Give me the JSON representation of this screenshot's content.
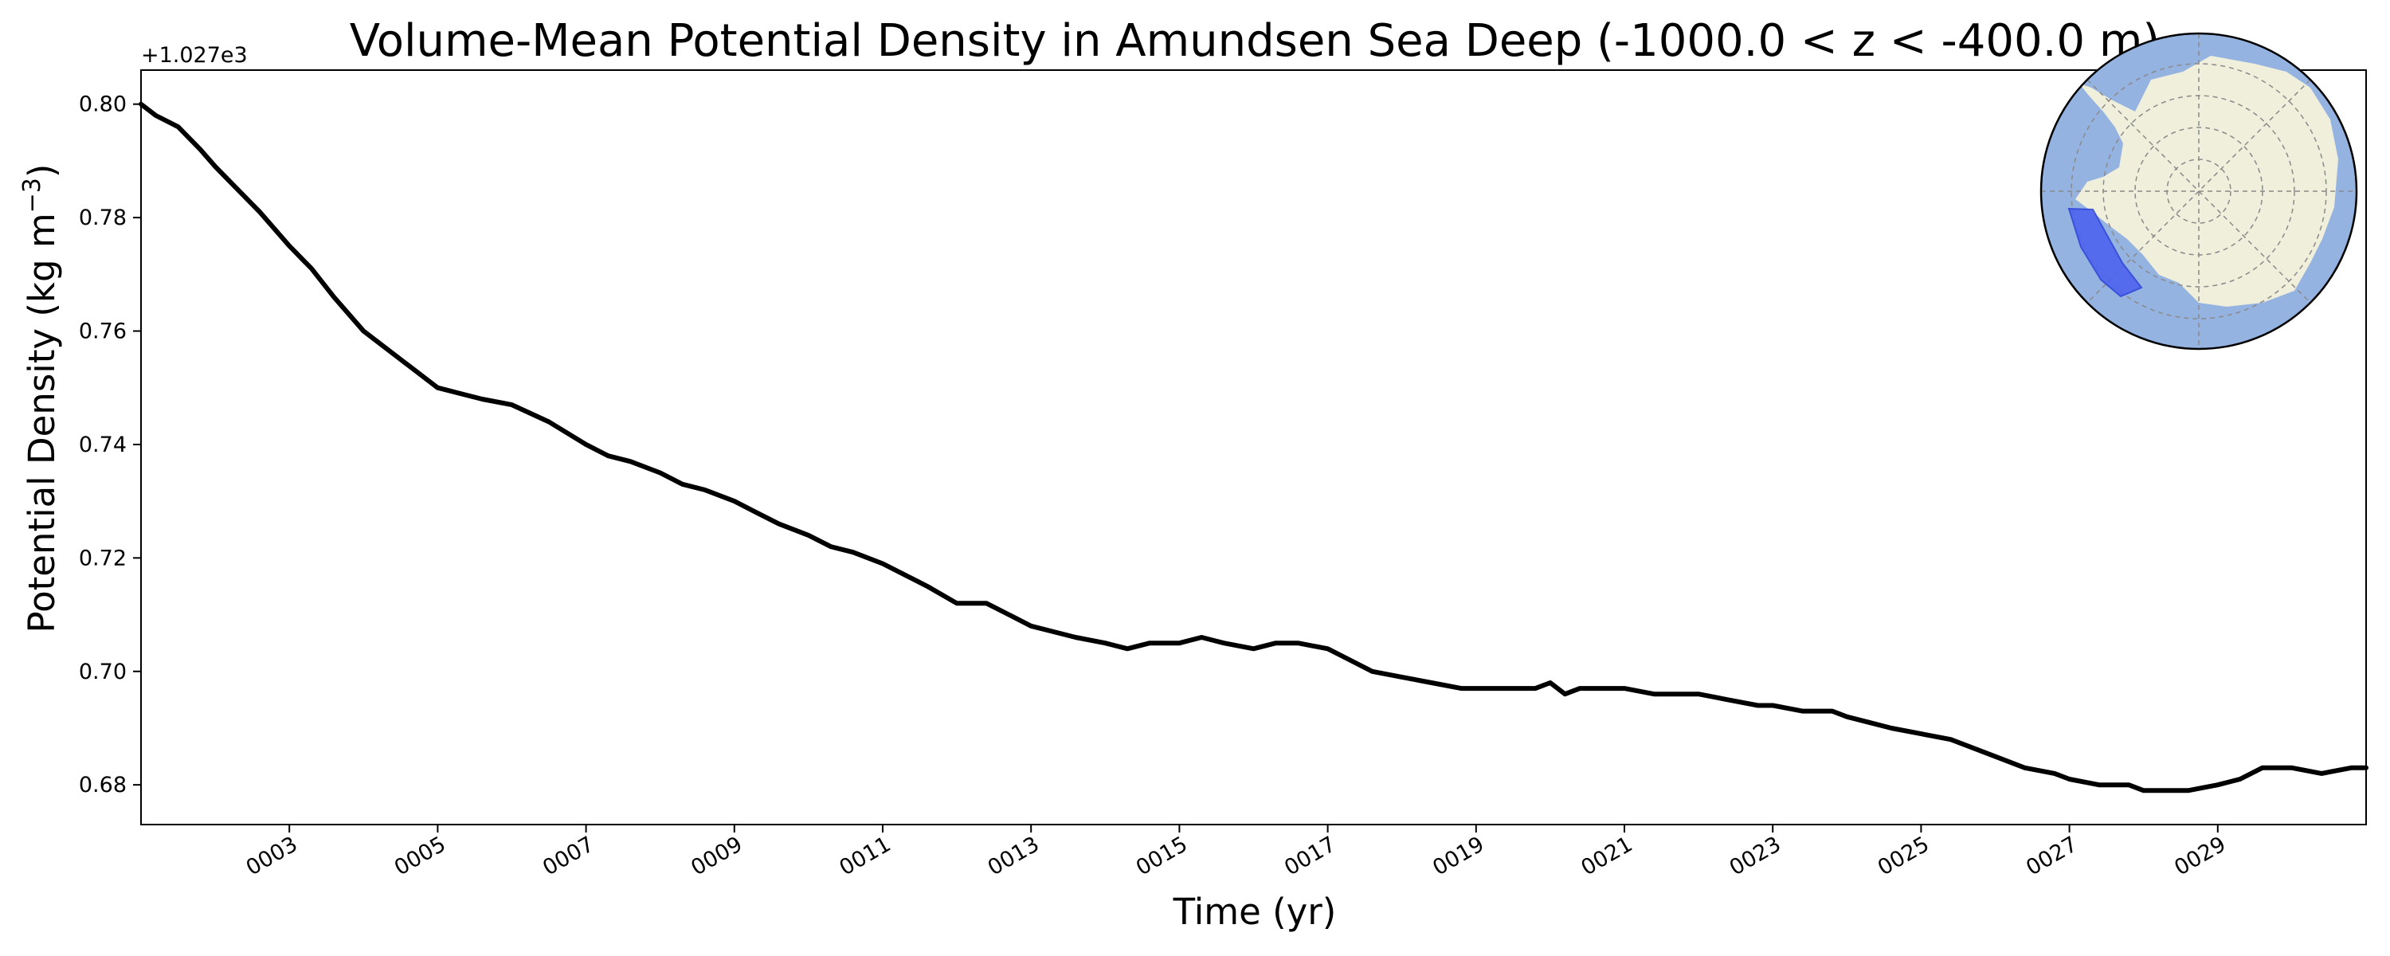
{
  "chart_data": {
    "type": "line",
    "title": "Volume-Mean Potential Density in Amundsen Sea Deep (-1000.0 < z < -400.0 m)",
    "xlabel": "Time (yr)",
    "ylabel_main": "Potential Density (kg m",
    "ylabel_sup": "−3",
    "ylabel_close": ")",
    "y_offset_label": "+1.027e3",
    "xlim": [
      1.0,
      31.0
    ],
    "ylim": [
      0.673,
      0.806
    ],
    "x_ticks": [
      3,
      5,
      7,
      9,
      11,
      13,
      15,
      17,
      19,
      21,
      23,
      25,
      27,
      29
    ],
    "x_tick_labels": [
      "0003",
      "0005",
      "0007",
      "0009",
      "0011",
      "0013",
      "0015",
      "0017",
      "0019",
      "0021",
      "0023",
      "0025",
      "0027",
      "0029"
    ],
    "y_ticks": [
      0.68,
      0.7,
      0.72,
      0.74,
      0.76,
      0.78,
      0.8
    ],
    "y_tick_labels": [
      "0.68",
      "0.70",
      "0.72",
      "0.74",
      "0.76",
      "0.78",
      "0.80"
    ],
    "grid": false,
    "line_color": "#000000",
    "series": [
      {
        "x": [
          1.0,
          1.2,
          1.5,
          1.8,
          2.0,
          2.3,
          2.6,
          3.0,
          3.3,
          3.6,
          4.0,
          4.3,
          4.6,
          5.0,
          5.3,
          5.6,
          6.0,
          6.5,
          7.0,
          7.3,
          7.6,
          8.0,
          8.3,
          8.6,
          9.0,
          9.3,
          9.6,
          10.0,
          10.3,
          10.6,
          11.0,
          11.3,
          11.6,
          12.0,
          12.4,
          12.7,
          13.0,
          13.3,
          13.6,
          14.0,
          14.3,
          14.6,
          15.0,
          15.3,
          15.6,
          16.0,
          16.3,
          16.6,
          17.0,
          17.3,
          17.6,
          18.0,
          18.4,
          18.8,
          19.0,
          19.4,
          19.8,
          20.0,
          20.2,
          20.4,
          20.7,
          21.0,
          21.4,
          21.8,
          22.0,
          22.4,
          22.8,
          23.0,
          23.4,
          23.8,
          24.0,
          24.3,
          24.6,
          25.0,
          25.4,
          25.8,
          26.0,
          26.4,
          26.8,
          27.0,
          27.4,
          27.8,
          28.0,
          28.3,
          28.6,
          29.0,
          29.3,
          29.6,
          30.0,
          30.4,
          30.8,
          31.0
        ],
        "y": [
          0.8,
          0.798,
          0.796,
          0.792,
          0.789,
          0.785,
          0.781,
          0.775,
          0.771,
          0.766,
          0.76,
          0.757,
          0.754,
          0.75,
          0.749,
          0.748,
          0.747,
          0.744,
          0.74,
          0.738,
          0.737,
          0.735,
          0.733,
          0.732,
          0.73,
          0.728,
          0.726,
          0.724,
          0.722,
          0.721,
          0.719,
          0.717,
          0.715,
          0.712,
          0.712,
          0.71,
          0.708,
          0.707,
          0.706,
          0.705,
          0.704,
          0.705,
          0.705,
          0.706,
          0.705,
          0.704,
          0.705,
          0.705,
          0.704,
          0.702,
          0.7,
          0.699,
          0.698,
          0.697,
          0.697,
          0.697,
          0.697,
          0.698,
          0.696,
          0.697,
          0.697,
          0.697,
          0.696,
          0.696,
          0.696,
          0.695,
          0.694,
          0.694,
          0.693,
          0.693,
          0.692,
          0.691,
          0.69,
          0.689,
          0.688,
          0.686,
          0.685,
          0.683,
          0.682,
          0.681,
          0.68,
          0.68,
          0.679,
          0.679,
          0.679,
          0.68,
          0.681,
          0.683,
          0.683,
          0.682,
          0.683,
          0.683
        ]
      }
    ],
    "inset_map": {
      "type": "south-polar-stereographic",
      "ocean_color": "#95b3e1",
      "land_color": "#efefdc",
      "region_color": "#4a5ef0",
      "region_name": "Amundsen Sea"
    }
  }
}
